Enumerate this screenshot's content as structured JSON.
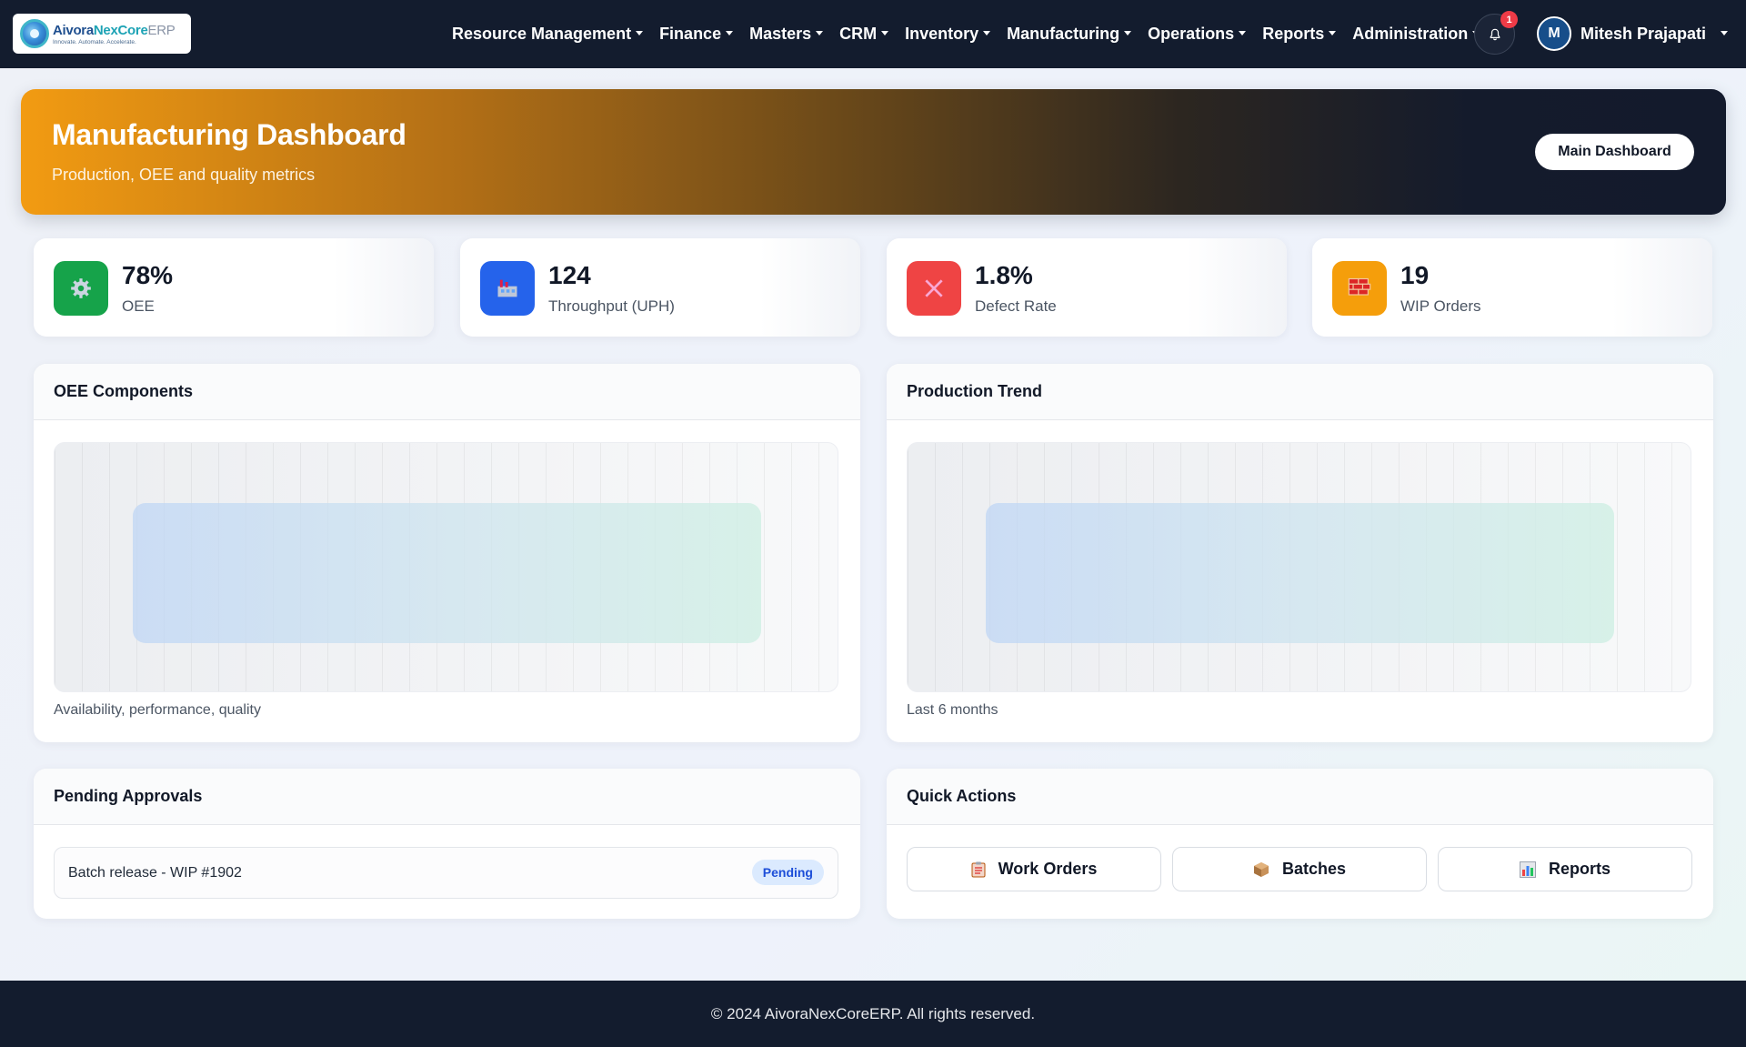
{
  "brand": {
    "name_part1": "Aivora",
    "name_part2": "NexCore",
    "name_part3": "ERP",
    "tagline": "Innovate. Automate. Accelerate."
  },
  "nav": {
    "items": [
      {
        "label": "Resource Management"
      },
      {
        "label": "Finance"
      },
      {
        "label": "Masters"
      },
      {
        "label": "CRM"
      },
      {
        "label": "Inventory"
      },
      {
        "label": "Manufacturing"
      },
      {
        "label": "Operations"
      },
      {
        "label": "Reports"
      },
      {
        "label": "Administration"
      }
    ],
    "notification_count": "1",
    "user": {
      "initial": "M",
      "name": "Mitesh Prajapati"
    }
  },
  "hero": {
    "title": "Manufacturing Dashboard",
    "subtitle": "Production, OEE and quality metrics",
    "button_label": "Main Dashboard"
  },
  "stats": [
    {
      "value": "78%",
      "label": "OEE",
      "icon": "gear-icon",
      "color": "#16a34a"
    },
    {
      "value": "124",
      "label": "Throughput (UPH)",
      "icon": "factory-icon",
      "color": "#2563eb"
    },
    {
      "value": "1.8%",
      "label": "Defect Rate",
      "icon": "cross-icon",
      "color": "#ef4444"
    },
    {
      "value": "19",
      "label": "WIP Orders",
      "icon": "bricks-icon",
      "color": "#f59e0b"
    }
  ],
  "panels": {
    "oee": {
      "title": "OEE Components",
      "caption": "Availability, performance, quality"
    },
    "trend": {
      "title": "Production Trend",
      "caption": "Last 6 months"
    },
    "approvals": {
      "title": "Pending Approvals",
      "items": [
        {
          "text": "Batch release - WIP #1902",
          "status": "Pending"
        }
      ]
    },
    "quick_actions": {
      "title": "Quick Actions",
      "buttons": [
        {
          "label": "Work Orders",
          "icon": "clipboard-icon"
        },
        {
          "label": "Batches",
          "icon": "package-icon"
        },
        {
          "label": "Reports",
          "icon": "bar-chart-icon"
        }
      ]
    }
  },
  "footer": {
    "text": "© 2024 AivoraNexCoreERP. All rights reserved."
  }
}
